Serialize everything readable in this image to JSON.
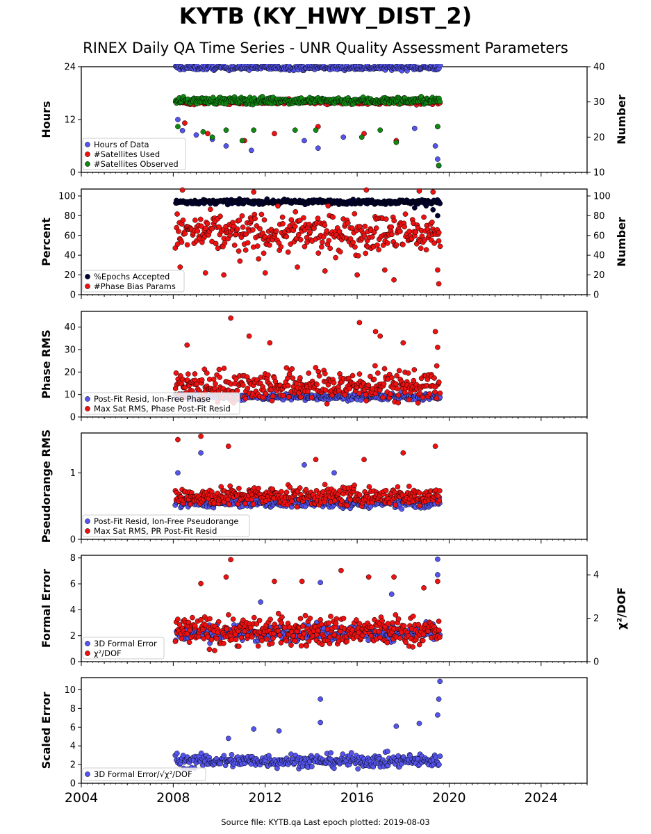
{
  "page": {
    "title": "KYTB (KY_HWY_DIST_2)",
    "subtitle": "RINEX Daily QA Time Series - UNR Quality Assessment Parameters",
    "footer": "Source file: KYTB.qa Last epoch plotted: 2019-08-03"
  },
  "colors": {
    "blue": "#5555ee",
    "red": "#ee1111",
    "green": "#118811",
    "navy": "#000033"
  },
  "chart_data": [
    {
      "type": "scatter",
      "ylabel": "Hours",
      "y2label": "Number",
      "xlim": [
        2004,
        2026
      ],
      "ylim": [
        0,
        24
      ],
      "y2lim": [
        10,
        40
      ],
      "yticks": [
        "0",
        "12",
        "24"
      ],
      "y2ticks": [
        "10",
        "20",
        "30",
        "40"
      ],
      "legend_position": "lower-left",
      "series": [
        {
          "name": "Hours of Data",
          "color": "blue",
          "axis": "left",
          "x_range": [
            2008.1,
            2019.6
          ],
          "typical": 23.8,
          "spread": 0.4,
          "points": [
            [
              2008.2,
              12
            ],
            [
              2008.4,
              9.5
            ],
            [
              2009.0,
              8.5
            ],
            [
              2009.7,
              7.5
            ],
            [
              2010.3,
              6
            ],
            [
              2011.4,
              5
            ],
            [
              2013.7,
              7.2
            ],
            [
              2014.3,
              5.5
            ],
            [
              2015.4,
              8
            ],
            [
              2018.5,
              10
            ],
            [
              2019.5,
              3
            ],
            [
              2019.55,
              1.5
            ],
            [
              2019.4,
              6
            ]
          ]
        },
        {
          "name": "#Satellites Used",
          "color": "red",
          "axis": "right",
          "x_range": [
            2008.1,
            2019.6
          ],
          "typical": 30,
          "spread": 0.5,
          "points": [
            [
              2008.5,
              24
            ],
            [
              2009.5,
              21
            ],
            [
              2011.1,
              19
            ],
            [
              2012.4,
              21
            ],
            [
              2014.3,
              23
            ],
            [
              2016.3,
              21
            ],
            [
              2017.7,
              19
            ],
            [
              2019.5,
              23
            ]
          ]
        },
        {
          "name": "#Satellites Observed",
          "color": "green",
          "axis": "right",
          "x_range": [
            2008.1,
            2019.6
          ],
          "typical": 30.4,
          "spread": 0.7,
          "points": [
            [
              2008.2,
              23
            ],
            [
              2009.3,
              21.5
            ],
            [
              2009.7,
              20
            ],
            [
              2010.3,
              22
            ],
            [
              2011.0,
              19
            ],
            [
              2011.5,
              22
            ],
            [
              2013.3,
              22
            ],
            [
              2014.2,
              22
            ],
            [
              2016.2,
              20
            ],
            [
              2017.0,
              22
            ],
            [
              2017.7,
              18.5
            ],
            [
              2019.5,
              23
            ],
            [
              2019.55,
              12
            ]
          ]
        }
      ]
    },
    {
      "type": "scatter",
      "ylabel": "Percent",
      "y2label": "Number",
      "xlim": [
        2004,
        2026
      ],
      "ylim": [
        0,
        107
      ],
      "y2lim": [
        0,
        107
      ],
      "yticks": [
        "0",
        "20",
        "40",
        "60",
        "80",
        "100"
      ],
      "y2ticks": [
        "0",
        "20",
        "40",
        "60",
        "80",
        "100"
      ],
      "legend_position": "lower-left",
      "series": [
        {
          "name": "%Epochs Accepted",
          "color": "navy",
          "axis": "left",
          "x_range": [
            2008.1,
            2019.6
          ],
          "typical": 94,
          "spread": 1.5,
          "points": [
            [
              2018.5,
              88
            ],
            [
              2019.0,
              90
            ],
            [
              2019.3,
              86
            ],
            [
              2019.5,
              80
            ]
          ]
        },
        {
          "name": "#Phase Bias Params",
          "color": "red",
          "axis": "right",
          "x_range": [
            2008.1,
            2019.6
          ],
          "typical": 62,
          "spread": 14,
          "points": [
            [
              2008.3,
              28
            ],
            [
              2009.4,
              22
            ],
            [
              2010.2,
              20
            ],
            [
              2010.9,
              34
            ],
            [
              2012.0,
              22
            ],
            [
              2013.4,
              28
            ],
            [
              2014.6,
              24
            ],
            [
              2016.0,
              20
            ],
            [
              2017.2,
              25
            ],
            [
              2017.6,
              15
            ],
            [
              2019.55,
              11
            ],
            [
              2019.5,
              25
            ],
            [
              2008.4,
              106
            ],
            [
              2011.5,
              104
            ],
            [
              2016.4,
              106
            ],
            [
              2018.7,
              105
            ],
            [
              2019.3,
              104
            ]
          ]
        }
      ]
    },
    {
      "type": "scatter",
      "ylabel": "Phase RMS",
      "y2label": "",
      "xlim": [
        2004,
        2026
      ],
      "ylim": [
        0,
        47
      ],
      "yticks": [
        "0",
        "10",
        "20",
        "30",
        "40"
      ],
      "legend_position": "lower-left",
      "series": [
        {
          "name": "Post-Fit Resid, Ion-Free Phase",
          "color": "blue",
          "axis": "left",
          "x_range": [
            2008.1,
            2019.6
          ],
          "typical": 9,
          "spread": 1
        },
        {
          "name": "Max Sat RMS, Phase Post-Fit Resid",
          "color": "red",
          "axis": "left",
          "x_range": [
            2008.1,
            2019.6
          ],
          "typical": 14,
          "spread": 5,
          "points": [
            [
              2008.6,
              32
            ],
            [
              2010.5,
              44
            ],
            [
              2011.3,
              36
            ],
            [
              2012.2,
              33
            ],
            [
              2016.1,
              42
            ],
            [
              2016.8,
              38
            ],
            [
              2017.0,
              36
            ],
            [
              2018.0,
              33
            ],
            [
              2019.4,
              38
            ],
            [
              2019.5,
              31
            ]
          ]
        }
      ]
    },
    {
      "type": "scatter",
      "ylabel": "Pseudorange RMS",
      "y2label": "",
      "xlim": [
        2004,
        2026
      ],
      "ylim": [
        0,
        1.6
      ],
      "yticks": [
        "0",
        "1"
      ],
      "legend_position": "lower-left",
      "series": [
        {
          "name": "Post-Fit Resid, Ion-Free Pseudorange",
          "color": "blue",
          "axis": "left",
          "x_range": [
            2008.1,
            2019.6
          ],
          "typical": 0.55,
          "spread": 0.05,
          "points": [
            [
              2008.2,
              1.0
            ],
            [
              2009.2,
              1.3
            ],
            [
              2013.7,
              1.12
            ],
            [
              2015.0,
              1.0
            ]
          ]
        },
        {
          "name": "Max Sat RMS, PR Post-Fit Resid",
          "color": "red",
          "axis": "left",
          "x_range": [
            2008.1,
            2019.6
          ],
          "typical": 0.65,
          "spread": 0.1,
          "points": [
            [
              2008.2,
              1.5
            ],
            [
              2009.2,
              1.55
            ],
            [
              2010.4,
              1.4
            ],
            [
              2014.2,
              1.2
            ],
            [
              2016.3,
              1.2
            ],
            [
              2018.0,
              1.3
            ],
            [
              2019.4,
              1.4
            ]
          ]
        }
      ]
    },
    {
      "type": "scatter",
      "ylabel": "Formal Error",
      "y2label": "χ²/DOF",
      "xlim": [
        2004,
        2026
      ],
      "ylim": [
        0,
        8.2
      ],
      "y2lim": [
        0,
        4.9
      ],
      "yticks": [
        "0",
        "2",
        "4",
        "6",
        "8"
      ],
      "y2ticks": [
        "0",
        "2",
        "4"
      ],
      "legend_position": "lower-left",
      "series": [
        {
          "name": "3D Formal Error",
          "color": "blue",
          "axis": "left",
          "x_range": [
            2008.1,
            2019.6
          ],
          "typical": 2.2,
          "spread": 0.4,
          "points": [
            [
              2011.8,
              4.6
            ],
            [
              2014.4,
              6.1
            ],
            [
              2019.5,
              7.9
            ],
            [
              2019.5,
              6.7
            ],
            [
              2017.5,
              5.2
            ]
          ]
        },
        {
          "name": "χ²/DOF",
          "color": "red",
          "axis": "right",
          "x_range": [
            2008.1,
            2019.6
          ],
          "typical": 1.4,
          "spread": 0.5,
          "points": [
            [
              2009.2,
              3.6
            ],
            [
              2010.3,
              3.9
            ],
            [
              2010.5,
              4.7
            ],
            [
              2012.4,
              3.7
            ],
            [
              2013.6,
              3.7
            ],
            [
              2015.3,
              4.2
            ],
            [
              2016.5,
              3.9
            ],
            [
              2017.6,
              3.9
            ],
            [
              2018.9,
              3.4
            ],
            [
              2019.5,
              3.7
            ]
          ]
        }
      ]
    },
    {
      "type": "scatter",
      "ylabel": "Scaled Error",
      "y2label": "",
      "xlim": [
        2004,
        2026
      ],
      "ylim": [
        0,
        11.3
      ],
      "yticks": [
        "0",
        "2",
        "4",
        "6",
        "8",
        "10"
      ],
      "xticks": [
        "2004",
        "2008",
        "2012",
        "2016",
        "2020",
        "2024"
      ],
      "legend_position": "lower-left",
      "series": [
        {
          "name": "3D Formal Error/√χ²/DOF",
          "color": "blue",
          "axis": "left",
          "x_range": [
            2008.1,
            2019.6
          ],
          "typical": 2.4,
          "spread": 0.5,
          "points": [
            [
              2010.4,
              4.8
            ],
            [
              2011.5,
              5.8
            ],
            [
              2012.6,
              5.6
            ],
            [
              2014.4,
              6.5
            ],
            [
              2014.4,
              9
            ],
            [
              2017.7,
              6.1
            ],
            [
              2018.7,
              6.4
            ],
            [
              2019.5,
              7.3
            ],
            [
              2019.55,
              9
            ],
            [
              2019.6,
              10.9
            ]
          ]
        }
      ]
    }
  ]
}
